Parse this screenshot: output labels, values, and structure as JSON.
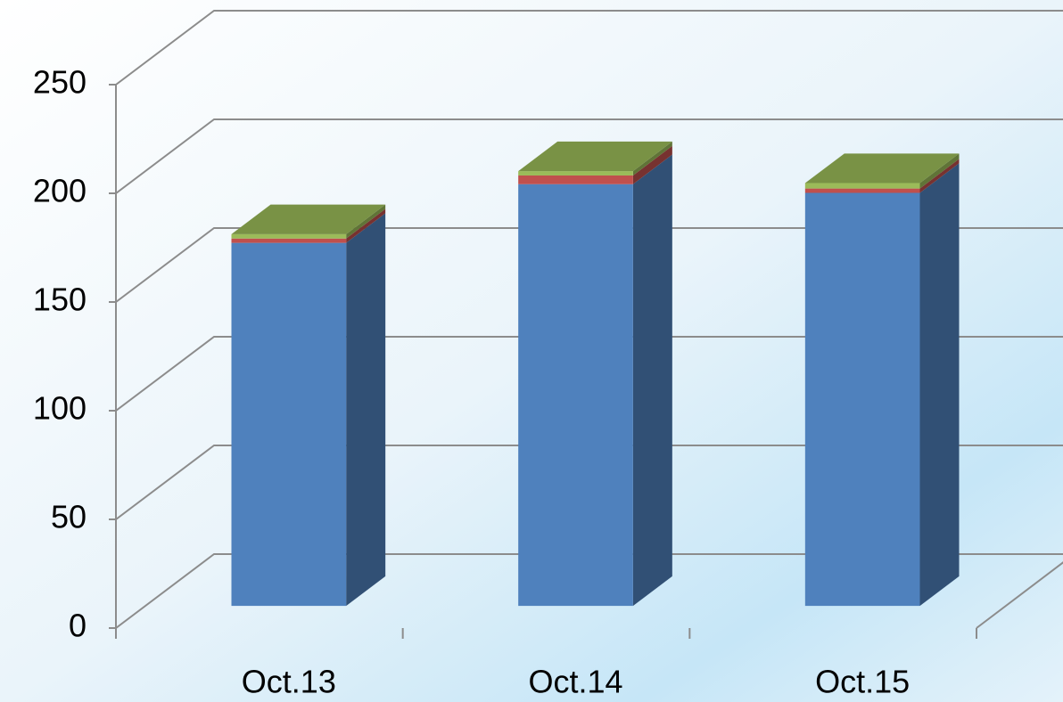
{
  "chart_data": {
    "type": "bar3d_stacked",
    "categories": [
      "Oct.13",
      "Oct.14",
      "Oct.15"
    ],
    "series": [
      {
        "color": "#4f81bd",
        "values": [
          167,
          194,
          190
        ]
      },
      {
        "color": "#c0504d",
        "values": [
          2,
          4,
          2
        ]
      },
      {
        "color": "#9bbb59",
        "values": [
          2,
          2,
          2.5
        ]
      }
    ],
    "ylim": [
      0,
      250
    ],
    "yticks": [
      0,
      50,
      100,
      150,
      200,
      250
    ],
    "grid": true
  }
}
